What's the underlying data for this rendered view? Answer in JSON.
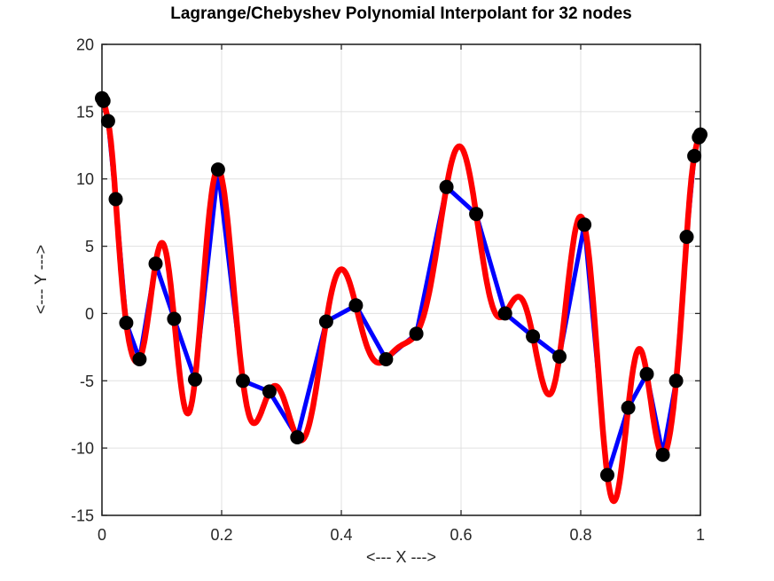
{
  "chart_data": {
    "type": "line",
    "title": "Lagrange/Chebyshev Polynomial Interpolant for 32 nodes",
    "xlabel": "<--- X --->",
    "ylabel": "<--- Y --->",
    "xlim": [
      0,
      1
    ],
    "ylim": [
      -15,
      20
    ],
    "x_ticks": [
      0,
      0.2,
      0.4,
      0.6,
      0.8,
      1
    ],
    "x_tick_labels": [
      "0",
      "0.2",
      "0.4",
      "0.6",
      "0.8",
      "1"
    ],
    "y_ticks": [
      -15,
      -10,
      -5,
      0,
      5,
      10,
      15,
      20
    ],
    "y_tick_labels": [
      "-15",
      "-10",
      "-5",
      "0",
      "5",
      "10",
      "15",
      "20"
    ],
    "grid": true,
    "legend": null,
    "nodes": {
      "count": 32,
      "distribution": "chebyshev-second-kind",
      "x": [
        0,
        0.00256,
        0.01024,
        0.02293,
        0.04052,
        0.06283,
        0.08962,
        0.12062,
        0.15552,
        0.19395,
        0.23552,
        0.2798,
        0.32635,
        0.37467,
        0.42429,
        0.47468,
        0.52532,
        0.57571,
        0.62533,
        0.67365,
        0.7202,
        0.76448,
        0.80605,
        0.84448,
        0.87938,
        0.91038,
        0.93717,
        0.95948,
        0.97707,
        0.98977,
        0.99744,
        1
      ],
      "y": [
        16,
        15.8,
        14.3,
        8.5,
        -0.7,
        -3.4,
        3.7,
        -0.4,
        -4.9,
        10.7,
        -5,
        -5.8,
        -9.2,
        -0.6,
        0.6,
        -3.4,
        -1.5,
        9.4,
        7.4,
        0,
        -1.7,
        -3.2,
        6.6,
        -12,
        -7,
        -4.5,
        -10.5,
        -5,
        5.7,
        11.7,
        13.1,
        13.3
      ]
    },
    "series": [
      {
        "name": "interpolation nodes",
        "type": "scatter",
        "marker": "filled-circle",
        "color": "#000000"
      },
      {
        "name": "piecewise linear through nodes",
        "type": "line",
        "color": "#0000FF"
      },
      {
        "name": "Lagrange/Chebyshev polynomial interpolant",
        "type": "line",
        "color": "#FF0000"
      }
    ],
    "colors": {
      "red_curve": "#FF0000",
      "blue_polyline": "#0000FF",
      "node_marker": "#000000",
      "grid": "#E0E0E0",
      "axis": "#262626",
      "background": "#FFFFFF"
    }
  }
}
